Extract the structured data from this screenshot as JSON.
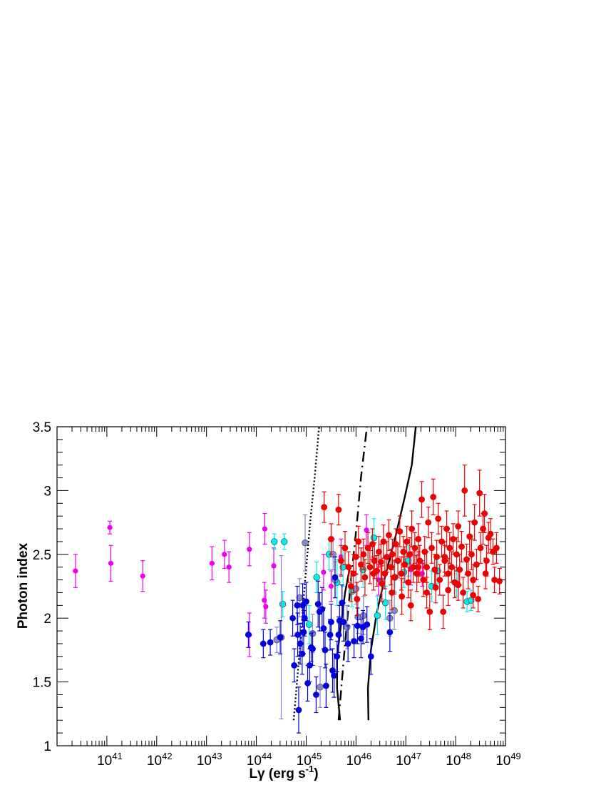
{
  "chart_data": {
    "type": "scatter",
    "title": "",
    "xlabel": "Lγ (erg s-1)",
    "xlabel_parts": {
      "main": "Lγ (erg s",
      "sup": "-1",
      "close": ")"
    },
    "ylabel": "Photon index",
    "x_scale": "log",
    "xlim_log10": [
      40,
      49
    ],
    "ylim": [
      1,
      3.5
    ],
    "x_ticks": [
      {
        "exp": 41,
        "base": "10",
        "sup": "41"
      },
      {
        "exp": 42,
        "base": "10",
        "sup": "42"
      },
      {
        "exp": 43,
        "base": "10",
        "sup": "43"
      },
      {
        "exp": 44,
        "base": "10",
        "sup": "44"
      },
      {
        "exp": 45,
        "base": "10",
        "sup": "45"
      },
      {
        "exp": 46,
        "base": "10",
        "sup": "46"
      },
      {
        "exp": 47,
        "base": "10",
        "sup": "47"
      },
      {
        "exp": 48,
        "base": "10",
        "sup": "48"
      },
      {
        "exp": 49,
        "base": "10",
        "sup": "49"
      }
    ],
    "y_ticks": [
      {
        "value": 1,
        "label": "1"
      },
      {
        "value": 1.5,
        "label": "1.5"
      },
      {
        "value": 2,
        "label": "2"
      },
      {
        "value": 2.5,
        "label": "2.5"
      },
      {
        "value": 3,
        "label": "3"
      },
      {
        "value": 3.5,
        "label": "3.5"
      }
    ],
    "grid": false,
    "legend": "none",
    "series": [
      {
        "color": "#ee00ee",
        "points": [
          [
            40.37,
            2.37,
            0.13
          ],
          [
            41.06,
            2.71,
            0.05
          ],
          [
            41.08,
            2.43,
            0.14
          ],
          [
            41.72,
            2.33,
            0.12
          ],
          [
            43.11,
            2.43,
            0.13
          ],
          [
            43.36,
            2.5,
            0.11
          ],
          [
            43.45,
            2.4,
            0.12
          ],
          [
            43.86,
            2.54,
            0.13
          ],
          [
            43.86,
            1.87,
            0.17
          ],
          [
            44.17,
            2.7,
            0.12
          ],
          [
            44.16,
            2.14,
            0.14
          ],
          [
            44.19,
            2.09,
            0.13
          ],
          [
            44.35,
            2.41,
            0.14
          ],
          [
            45.35,
            2.36,
            0.14
          ],
          [
            45.5,
            2.25,
            0.12
          ],
          [
            45.7,
            2.48,
            0.14
          ],
          [
            46.21,
            2.69,
            0.12
          ],
          [
            46.45,
            2.3,
            0.12
          ],
          [
            47.1,
            2.38,
            0.12
          ],
          [
            47.33,
            2.35,
            0.1
          ]
        ]
      },
      {
        "color": "#00eeee",
        "points": [
          [
            44.36,
            2.6,
            0.06
          ],
          [
            44.56,
            2.6,
            0.06
          ],
          [
            44.53,
            2.11,
            0.1
          ],
          [
            45.06,
            1.95,
            0.15
          ],
          [
            45.21,
            2.32,
            0.12
          ],
          [
            45.46,
            2.5,
            0.12
          ],
          [
            45.62,
            2.28,
            0.18
          ],
          [
            45.74,
            2.4,
            0.15
          ],
          [
            45.92,
            2.21,
            0.12
          ],
          [
            46.14,
            2.38,
            0.14
          ],
          [
            46.36,
            2.63,
            0.15
          ],
          [
            46.43,
            2.02,
            0.15
          ],
          [
            46.59,
            2.12,
            0.13
          ],
          [
            46.78,
            2.32,
            0.12
          ],
          [
            46.96,
            2.36,
            0.12
          ],
          [
            47.05,
            2.45,
            0.12
          ],
          [
            47.52,
            2.25,
            0.12
          ],
          [
            47.64,
            2.37,
            0.1
          ],
          [
            48.02,
            2.27,
            0.1
          ],
          [
            48.23,
            2.13,
            0.08
          ],
          [
            48.31,
            2.14,
            0.08
          ]
        ]
      },
      {
        "color": "#8888cc",
        "points": [
          [
            44.41,
            1.83,
            0.1
          ],
          [
            44.5,
            1.85,
            0.64
          ],
          [
            44.87,
            2.16,
            0.15
          ],
          [
            44.98,
            2.59,
            0.22
          ],
          [
            45.13,
            1.88,
            0.15
          ],
          [
            45.28,
            1.46,
            0.16
          ],
          [
            45.54,
            2.5,
            0.12
          ],
          [
            45.58,
            2.3,
            0.14
          ],
          [
            45.82,
            1.93,
            0.17
          ],
          [
            46.0,
            2.23,
            0.12
          ],
          [
            46.04,
            2.01,
            0.13
          ],
          [
            46.15,
            2.02,
            0.15
          ],
          [
            46.52,
            2.29,
            0.14
          ],
          [
            46.68,
            2.0,
            0.14
          ],
          [
            46.77,
            2.06,
            0.15
          ]
        ]
      },
      {
        "color": "#0000dd",
        "points": [
          [
            43.84,
            1.87,
            0.1
          ],
          [
            44.14,
            1.8,
            0.11
          ],
          [
            44.28,
            1.81,
            0.1
          ],
          [
            44.48,
            1.85,
            0.13
          ],
          [
            44.73,
            2.0,
            0.14
          ],
          [
            44.76,
            1.63,
            0.13
          ],
          [
            44.82,
            2.1,
            0.15
          ],
          [
            44.83,
            1.87,
            0.17
          ],
          [
            44.85,
            1.28,
            0.18
          ],
          [
            44.88,
            1.8,
            0.16
          ],
          [
            44.92,
            1.72,
            0.16
          ],
          [
            44.93,
            2.1,
            0.17
          ],
          [
            44.95,
            1.89,
            0.17
          ],
          [
            44.97,
            2.0,
            0.14
          ],
          [
            45.0,
            2.13,
            0.15
          ],
          [
            45.03,
            1.49,
            0.14
          ],
          [
            45.07,
            1.63,
            0.13
          ],
          [
            45.1,
            1.77,
            0.11
          ],
          [
            45.13,
            1.76,
            0.13
          ],
          [
            45.2,
            1.4,
            0.14
          ],
          [
            45.24,
            2.11,
            0.18
          ],
          [
            45.27,
            2.05,
            0.15
          ],
          [
            45.32,
            2.07,
            0.17
          ],
          [
            45.35,
            1.92,
            0.16
          ],
          [
            45.38,
            1.75,
            0.14
          ],
          [
            45.4,
            1.47,
            0.17
          ],
          [
            45.48,
            1.87,
            0.12
          ],
          [
            45.5,
            1.97,
            0.14
          ],
          [
            45.53,
            1.59,
            0.17
          ],
          [
            45.56,
            1.55,
            0.17
          ],
          [
            45.58,
            2.32,
            0.16
          ],
          [
            45.62,
            1.7,
            0.12
          ],
          [
            45.65,
            1.87,
            0.14
          ],
          [
            45.67,
            1.98,
            0.12
          ],
          [
            45.72,
            2.12,
            0.14
          ],
          [
            45.75,
            1.97,
            0.15
          ],
          [
            45.84,
            1.8,
            0.14
          ],
          [
            45.96,
            1.82,
            0.13
          ],
          [
            46.03,
            1.94,
            0.14
          ],
          [
            46.1,
            1.84,
            0.15
          ],
          [
            46.14,
            1.93,
            0.13
          ],
          [
            46.22,
            1.95,
            0.14
          ],
          [
            46.3,
            1.7,
            0.14
          ],
          [
            46.68,
            1.89,
            0.15
          ]
        ]
      },
      {
        "color": "#ee0000",
        "points": [
          [
            45.36,
            2.87,
            0.12
          ],
          [
            45.5,
            2.62,
            0.12
          ],
          [
            45.65,
            2.85,
            0.12
          ],
          [
            45.7,
            2.45,
            0.12
          ],
          [
            45.78,
            2.55,
            0.13
          ],
          [
            45.85,
            2.4,
            0.12
          ],
          [
            45.95,
            2.35,
            0.15
          ],
          [
            46.0,
            2.48,
            0.14
          ],
          [
            46.05,
            2.6,
            0.12
          ],
          [
            46.1,
            2.42,
            0.13
          ],
          [
            46.15,
            2.5,
            0.12
          ],
          [
            46.18,
            2.32,
            0.14
          ],
          [
            46.24,
            2.55,
            0.12
          ],
          [
            46.28,
            2.4,
            0.13
          ],
          [
            46.33,
            2.58,
            0.12
          ],
          [
            46.37,
            2.45,
            0.14
          ],
          [
            46.42,
            2.37,
            0.12
          ],
          [
            46.46,
            2.52,
            0.12
          ],
          [
            46.5,
            2.44,
            0.14
          ],
          [
            46.55,
            2.6,
            0.13
          ],
          [
            46.58,
            2.35,
            0.12
          ],
          [
            46.62,
            2.48,
            0.12
          ],
          [
            46.66,
            2.65,
            0.12
          ],
          [
            46.7,
            2.4,
            0.14
          ],
          [
            46.73,
            2.5,
            0.12
          ],
          [
            46.77,
            2.32,
            0.13
          ],
          [
            46.8,
            2.58,
            0.12
          ],
          [
            46.84,
            2.45,
            0.13
          ],
          [
            46.88,
            2.68,
            0.12
          ],
          [
            46.91,
            2.35,
            0.13
          ],
          [
            46.95,
            2.52,
            0.12
          ],
          [
            46.98,
            2.42,
            0.14
          ],
          [
            47.02,
            2.6,
            0.12
          ],
          [
            47.05,
            2.28,
            0.12
          ],
          [
            47.08,
            2.5,
            0.13
          ],
          [
            47.12,
            2.7,
            0.14
          ],
          [
            47.15,
            2.4,
            0.12
          ],
          [
            47.18,
            2.55,
            0.12
          ],
          [
            47.22,
            2.35,
            0.14
          ],
          [
            47.25,
            2.62,
            0.12
          ],
          [
            47.28,
            2.45,
            0.12
          ],
          [
            47.32,
            2.93,
            0.14
          ],
          [
            47.35,
            2.3,
            0.13
          ],
          [
            47.38,
            2.52,
            0.12
          ],
          [
            47.42,
            2.4,
            0.12
          ],
          [
            47.45,
            2.75,
            0.12
          ],
          [
            47.48,
            2.05,
            0.14
          ],
          [
            47.52,
            2.55,
            0.12
          ],
          [
            47.55,
            2.95,
            0.14
          ],
          [
            47.58,
            2.38,
            0.12
          ],
          [
            47.62,
            2.48,
            0.13
          ],
          [
            47.65,
            2.78,
            0.12
          ],
          [
            47.68,
            2.3,
            0.12
          ],
          [
            47.72,
            2.6,
            0.12
          ],
          [
            47.75,
            2.05,
            0.13
          ],
          [
            47.78,
            2.45,
            0.12
          ],
          [
            47.82,
            2.7,
            0.14
          ],
          [
            47.85,
            2.35,
            0.12
          ],
          [
            47.88,
            2.55,
            0.12
          ],
          [
            47.92,
            2.4,
            0.12
          ],
          [
            47.95,
            2.62,
            0.12
          ],
          [
            47.98,
            2.28,
            0.12
          ],
          [
            48.02,
            2.5,
            0.13
          ],
          [
            48.05,
            2.72,
            0.12
          ],
          [
            48.08,
            2.38,
            0.12
          ],
          [
            48.12,
            2.56,
            0.12
          ],
          [
            48.15,
            2.2,
            0.12
          ],
          [
            48.18,
            3.0,
            0.2
          ],
          [
            48.22,
            2.46,
            0.12
          ],
          [
            48.25,
            2.35,
            0.12
          ],
          [
            48.28,
            2.64,
            0.12
          ],
          [
            48.32,
            2.5,
            0.12
          ],
          [
            48.35,
            2.3,
            0.12
          ],
          [
            48.38,
            2.75,
            0.14
          ],
          [
            48.42,
            2.42,
            0.12
          ],
          [
            48.45,
            2.15,
            0.1
          ],
          [
            48.48,
            2.98,
            0.18
          ],
          [
            48.5,
            2.55,
            0.12
          ],
          [
            48.55,
            2.7,
            0.12
          ],
          [
            48.58,
            2.82,
            0.15
          ],
          [
            48.62,
            2.45,
            0.12
          ],
          [
            48.66,
            2.63,
            0.12
          ],
          [
            48.7,
            2.66,
            0.12
          ],
          [
            48.75,
            2.52,
            0.1
          ],
          [
            48.78,
            2.3,
            0.1
          ],
          [
            48.82,
            2.55,
            0.12
          ],
          [
            48.88,
            2.29,
            0.1
          ],
          [
            46.52,
            2.27,
            0.14
          ],
          [
            46.92,
            2.17,
            0.14
          ],
          [
            47.1,
            2.1,
            0.12
          ],
          [
            46.02,
            2.15,
            0.13
          ],
          [
            45.9,
            2.25,
            0.12
          ],
          [
            47.42,
            2.2,
            0.12
          ],
          [
            47.6,
            2.24,
            0.12
          ],
          [
            47.85,
            2.22,
            0.12
          ],
          [
            48.05,
            2.26,
            0.12
          ],
          [
            48.35,
            2.18,
            0.1
          ],
          [
            48.6,
            2.35,
            0.12
          ],
          [
            46.35,
            2.35,
            0.13
          ],
          [
            46.72,
            2.2,
            0.13
          ],
          [
            47.25,
            2.4,
            0.12
          ],
          [
            47.78,
            2.48,
            0.12
          ]
        ]
      }
    ],
    "curves": [
      {
        "style": "dotted",
        "points": [
          [
            44.75,
            1.2
          ],
          [
            44.88,
            1.8
          ],
          [
            44.98,
            2.3
          ],
          [
            45.08,
            2.75
          ],
          [
            45.17,
            3.1
          ],
          [
            45.26,
            3.5
          ]
        ]
      },
      {
        "style": "dash-dot",
        "points": [
          [
            45.65,
            1.2
          ],
          [
            45.78,
            1.8
          ],
          [
            45.9,
            2.3
          ],
          [
            46.02,
            2.75
          ],
          [
            46.1,
            3.1
          ],
          [
            46.22,
            3.5
          ]
        ]
      },
      {
        "style": "solid",
        "points": [
          [
            45.68,
            1.2
          ],
          [
            45.62,
            1.45
          ],
          [
            45.62,
            1.7
          ],
          [
            45.7,
            1.95
          ],
          [
            45.78,
            2.2
          ],
          [
            45.88,
            2.4
          ]
        ]
      },
      {
        "style": "solid",
        "points": [
          [
            46.25,
            1.2
          ],
          [
            46.24,
            1.45
          ],
          [
            46.3,
            1.75
          ],
          [
            46.42,
            2.05
          ],
          [
            46.6,
            2.35
          ],
          [
            46.8,
            2.65
          ],
          [
            46.98,
            2.95
          ],
          [
            47.12,
            3.2
          ],
          [
            47.2,
            3.5
          ]
        ]
      }
    ]
  }
}
